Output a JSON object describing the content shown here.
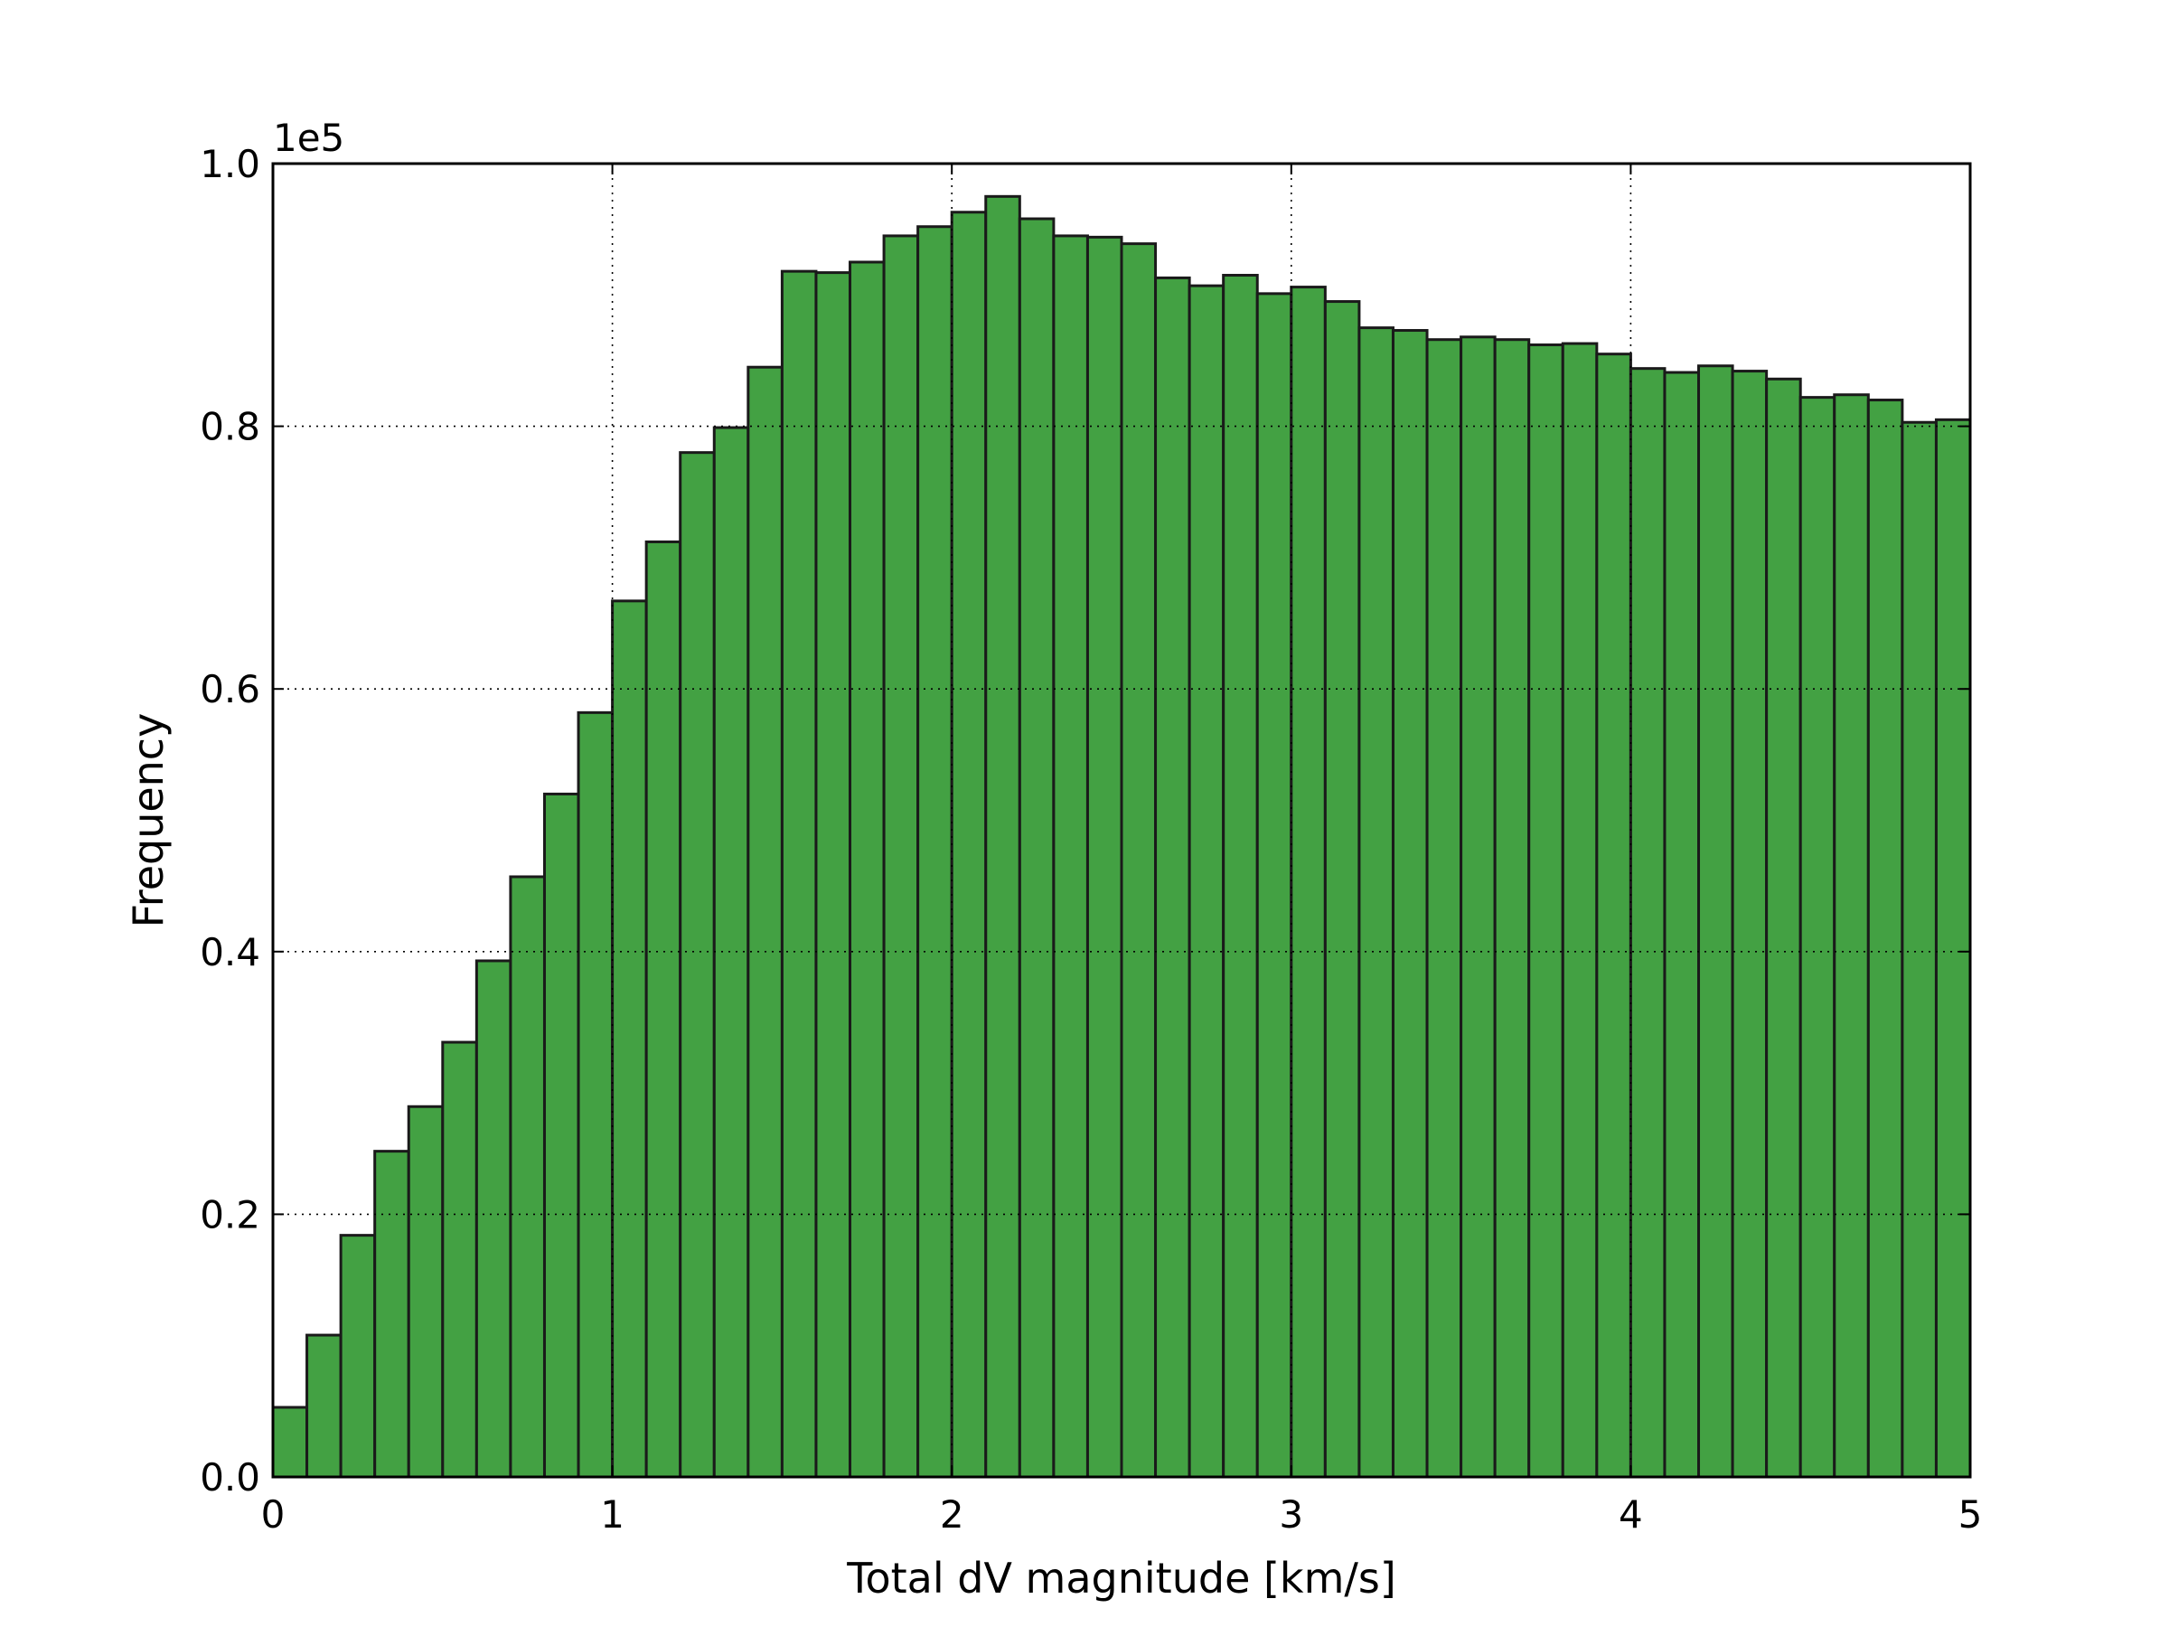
{
  "chart_data": {
    "type": "bar",
    "title": "",
    "xlabel": "Total dV magnitude [km/s]",
    "ylabel": "Frequency",
    "y_offset_label": "1e5",
    "xlim": [
      0,
      5
    ],
    "ylim": [
      0,
      1.0
    ],
    "xticks": [
      0,
      1,
      2,
      3,
      4,
      5
    ],
    "xtick_labels": [
      "0",
      "1",
      "2",
      "3",
      "4",
      "5"
    ],
    "yticks": [
      0.0,
      0.2,
      0.4,
      0.6,
      0.8,
      1.0
    ],
    "ytick_labels": [
      "0.0",
      "0.2",
      "0.4",
      "0.6",
      "0.8",
      "1.0"
    ],
    "grid": true,
    "bar_color": "#43a143",
    "edge_color": "#1a1a1a",
    "bin_width": 0.1,
    "bin_start": 0.0,
    "values": [
      0.053,
      0.108,
      0.184,
      0.248,
      0.282,
      0.331,
      0.393,
      0.457,
      0.52,
      0.582,
      0.667,
      0.712,
      0.78,
      0.799,
      0.845,
      0.918,
      0.917,
      0.925,
      0.945,
      0.952,
      0.963,
      0.975,
      0.958,
      0.945,
      0.944,
      0.939,
      0.913,
      0.907,
      0.915,
      0.901,
      0.906,
      0.895,
      0.875,
      0.873,
      0.866,
      0.868,
      0.866,
      0.862,
      0.863,
      0.855,
      0.844,
      0.841,
      0.846,
      0.842,
      0.836,
      0.822,
      0.824,
      0.82,
      0.803,
      0.805
    ]
  }
}
